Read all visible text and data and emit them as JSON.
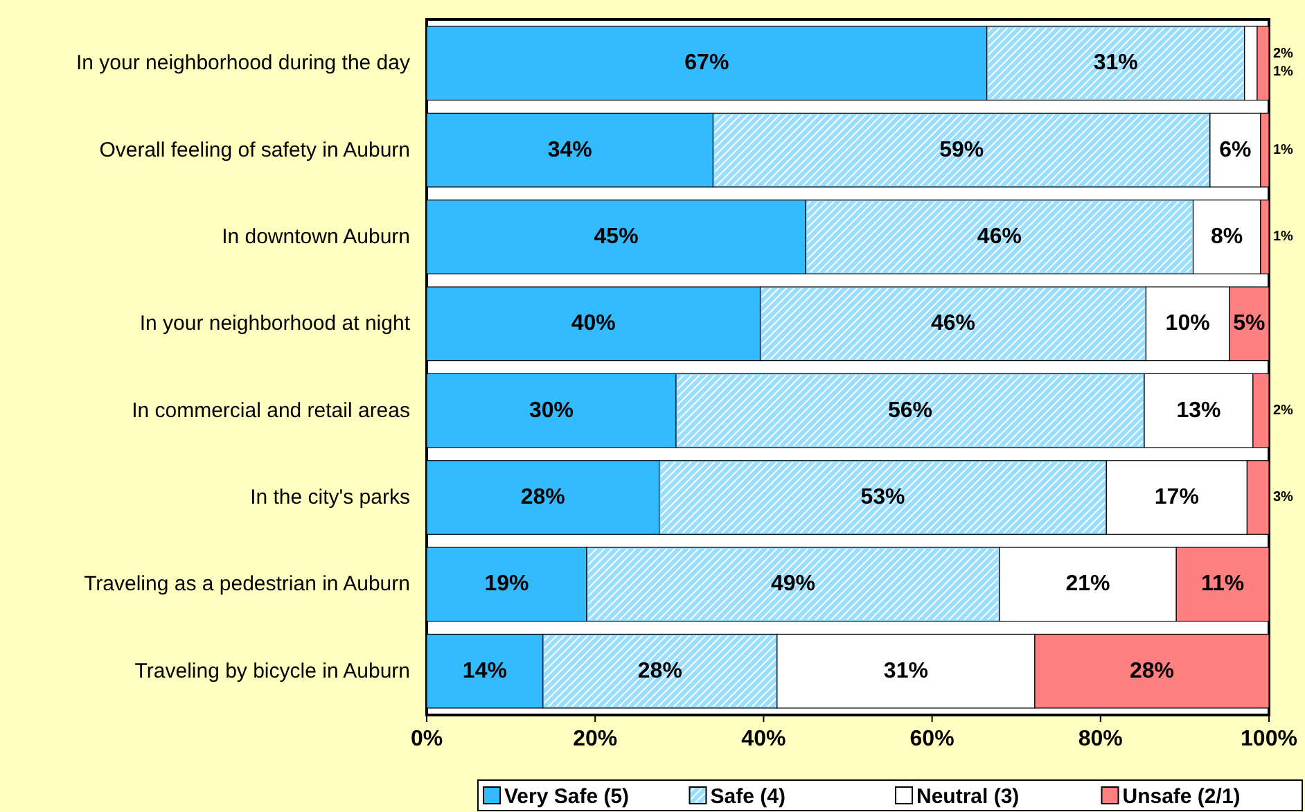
{
  "chart_data": {
    "type": "bar",
    "orientation": "horizontal",
    "stacked": true,
    "categories": [
      "In your neighborhood during the day",
      "Overall feeling of safety in Auburn",
      "In downtown Auburn",
      "In your neighborhood at night",
      "In commercial and retail areas",
      "In the city's parks ",
      "Traveling as a pedestrian in Auburn",
      "Traveling by bicycle in Auburn"
    ],
    "series": [
      {
        "name": "Very Safe (5)",
        "color": "#33bbff",
        "values": [
          66.5,
          34,
          45,
          39.6,
          29.6,
          27.6,
          19,
          13.8
        ],
        "value_labels": [
          "67%",
          "34%",
          "45%",
          "40%",
          "30%",
          "28%",
          "19%",
          "14%"
        ]
      },
      {
        "name": "Safe (4)",
        "color": "#99ddff",
        "values": [
          30.6,
          59,
          46,
          45.8,
          55.6,
          53.1,
          49,
          27.8
        ],
        "value_labels": [
          "31%",
          "59%",
          "46%",
          "46%",
          "56%",
          "53%",
          "49%",
          "28%"
        ]
      },
      {
        "name": "Neutral (3)",
        "color": "#ffffff",
        "values": [
          1.5,
          6,
          8,
          9.9,
          12.9,
          16.7,
          21,
          30.6
        ],
        "value_labels": [
          "2%",
          "6%",
          "8%",
          "10%",
          "13%",
          "17%",
          "21%",
          "31%"
        ]
      },
      {
        "name": "Unsafe (2/1)",
        "color": "#ff8080",
        "values": [
          1.4,
          1,
          1,
          4.7,
          1.9,
          2.6,
          11,
          27.8
        ],
        "value_labels": [
          "1%",
          "1%",
          "1%",
          "5%",
          "2%",
          "3%",
          "11%",
          "28%"
        ]
      }
    ],
    "xlim": [
      0,
      100
    ],
    "xticks": [
      {
        "value": 0,
        "label": "0%"
      },
      {
        "value": 20,
        "label": "20%"
      },
      {
        "value": 40,
        "label": "40%"
      },
      {
        "value": 60,
        "label": "60%"
      },
      {
        "value": 80,
        "label": "80%"
      },
      {
        "value": 100,
        "label": "100%"
      }
    ],
    "legend": "bottom"
  }
}
